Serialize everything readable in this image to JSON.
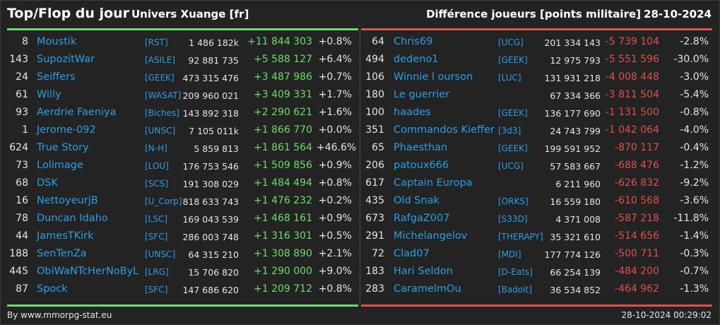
{
  "header": {
    "title": "Top/Flop du jour",
    "universe": "Univers Xuange [fr]",
    "metric": "Différence joueurs [points militaire]",
    "date": "28-10-2024"
  },
  "colors": {
    "background": "#232323",
    "positive": "#6bdd6b",
    "negative": "#e0504b",
    "link": "#2a9fe6"
  },
  "top": [
    {
      "rank": "8",
      "name": "Moustik",
      "alliance": "[RST]",
      "points": "1 486 182k",
      "diff": "+11 844 303",
      "pct": "+0.8%"
    },
    {
      "rank": "143",
      "name": "SupozitWar",
      "alliance": "[ASILE]",
      "points": "92 881 735",
      "diff": "+5 588 127",
      "pct": "+6.4%"
    },
    {
      "rank": "24",
      "name": "Seiffers",
      "alliance": "[GEEK]",
      "points": "473 315 476",
      "diff": "+3 487 986",
      "pct": "+0.7%"
    },
    {
      "rank": "61",
      "name": "Willy",
      "alliance": "[WASAT]",
      "points": "209 960 021",
      "diff": "+3 409 331",
      "pct": "+1.7%"
    },
    {
      "rank": "93",
      "name": "Aerdrie Faeniya",
      "alliance": "[Biches]",
      "points": "143 892 318",
      "diff": "+2 290 621",
      "pct": "+1.6%"
    },
    {
      "rank": "1",
      "name": "Jerome-092",
      "alliance": "[UNSC]",
      "points": "7 105 011k",
      "diff": "+1 866 770",
      "pct": "+0.0%"
    },
    {
      "rank": "624",
      "name": "True Story",
      "alliance": "[N-H]",
      "points": "5 859 813",
      "diff": "+1 861 564",
      "pct": "+46.6%"
    },
    {
      "rank": "73",
      "name": "Lolimage",
      "alliance": "[LOU]",
      "points": "176 753 546",
      "diff": "+1 509 856",
      "pct": "+0.9%"
    },
    {
      "rank": "68",
      "name": "DSK",
      "alliance": "[SCS]",
      "points": "191 308 029",
      "diff": "+1 484 494",
      "pct": "+0.8%"
    },
    {
      "rank": "16",
      "name": "NettoyeurjB",
      "alliance": "[U_Corp]",
      "points": "818 633 743",
      "diff": "+1 476 232",
      "pct": "+0.2%"
    },
    {
      "rank": "78",
      "name": "Duncan Idaho",
      "alliance": "[LSC]",
      "points": "169 043 539",
      "diff": "+1 468 161",
      "pct": "+0.9%"
    },
    {
      "rank": "44",
      "name": "JamesTKirk",
      "alliance": "[SFC]",
      "points": "286 003 748",
      "diff": "+1 316 301",
      "pct": "+0.5%"
    },
    {
      "rank": "188",
      "name": "SenTenZa",
      "alliance": "[UNSC]",
      "points": "64 315 210",
      "diff": "+1 308 890",
      "pct": "+2.1%"
    },
    {
      "rank": "445",
      "name": "ObiWaNTcHerNoByL",
      "alliance": "[LRG]",
      "points": "15 706 820",
      "diff": "+1 290 000",
      "pct": "+9.0%"
    },
    {
      "rank": "87",
      "name": "Spock",
      "alliance": "[SFC]",
      "points": "147 686 620",
      "diff": "+1 209 712",
      "pct": "+0.8%"
    }
  ],
  "flop": [
    {
      "rank": "64",
      "name": "Chris69",
      "alliance": "[UCG]",
      "points": "201 334 143",
      "diff": "-5 739 104",
      "pct": "-2.8%"
    },
    {
      "rank": "494",
      "name": "dedeno1",
      "alliance": "[GEEK]",
      "points": "12 975 793",
      "diff": "-5 551 596",
      "pct": "-30.0%"
    },
    {
      "rank": "106",
      "name": "Winnie l ourson",
      "alliance": "[LUC]",
      "points": "131 931 218",
      "diff": "-4 008 448",
      "pct": "-3.0%"
    },
    {
      "rank": "180",
      "name": "Le guerrier",
      "alliance": "",
      "points": "67 334 366",
      "diff": "-3 811 504",
      "pct": "-5.4%"
    },
    {
      "rank": "100",
      "name": "haades",
      "alliance": "[GEEK]",
      "points": "136 177 690",
      "diff": "-1 131 500",
      "pct": "-0.8%"
    },
    {
      "rank": "351",
      "name": "Commandos Kieffer",
      "alliance": "[3d3]",
      "points": "24 743 799",
      "diff": "-1 042 064",
      "pct": "-4.0%"
    },
    {
      "rank": "65",
      "name": "Phaesthan",
      "alliance": "[GEEK]",
      "points": "199 591 952",
      "diff": "-870 117",
      "pct": "-0.4%"
    },
    {
      "rank": "206",
      "name": "patoux666",
      "alliance": "[UCG]",
      "points": "57 583 667",
      "diff": "-688 476",
      "pct": "-1.2%"
    },
    {
      "rank": "617",
      "name": "Captain Europa",
      "alliance": "",
      "points": "6 211 960",
      "diff": "-626 832",
      "pct": "-9.2%"
    },
    {
      "rank": "435",
      "name": "Old Snak",
      "alliance": "[ORKS]",
      "points": "16 559 180",
      "diff": "-610 568",
      "pct": "-3.6%"
    },
    {
      "rank": "673",
      "name": "RafgaZ007",
      "alliance": "[S33D]",
      "points": "4 371 008",
      "diff": "-587 218",
      "pct": "-11.8%"
    },
    {
      "rank": "291",
      "name": "Michelangelov",
      "alliance": "[THERAPY]",
      "points": "35 321 610",
      "diff": "-514 656",
      "pct": "-1.4%"
    },
    {
      "rank": "72",
      "name": "Clad07",
      "alliance": "[MDI]",
      "points": "177 774 126",
      "diff": "-500 711",
      "pct": "-0.3%"
    },
    {
      "rank": "183",
      "name": "Hari Seldon",
      "alliance": "[D-Eats]",
      "points": "66 254 139",
      "diff": "-484 200",
      "pct": "-0.7%"
    },
    {
      "rank": "283",
      "name": "CaramelmOu",
      "alliance": "[Badoit]",
      "points": "36 534 852",
      "diff": "-464 962",
      "pct": "-1.3%"
    }
  ],
  "footer": {
    "source": "By www.mmorpg-stat.eu",
    "timestamp": "28-10-2024 00:29:02"
  }
}
